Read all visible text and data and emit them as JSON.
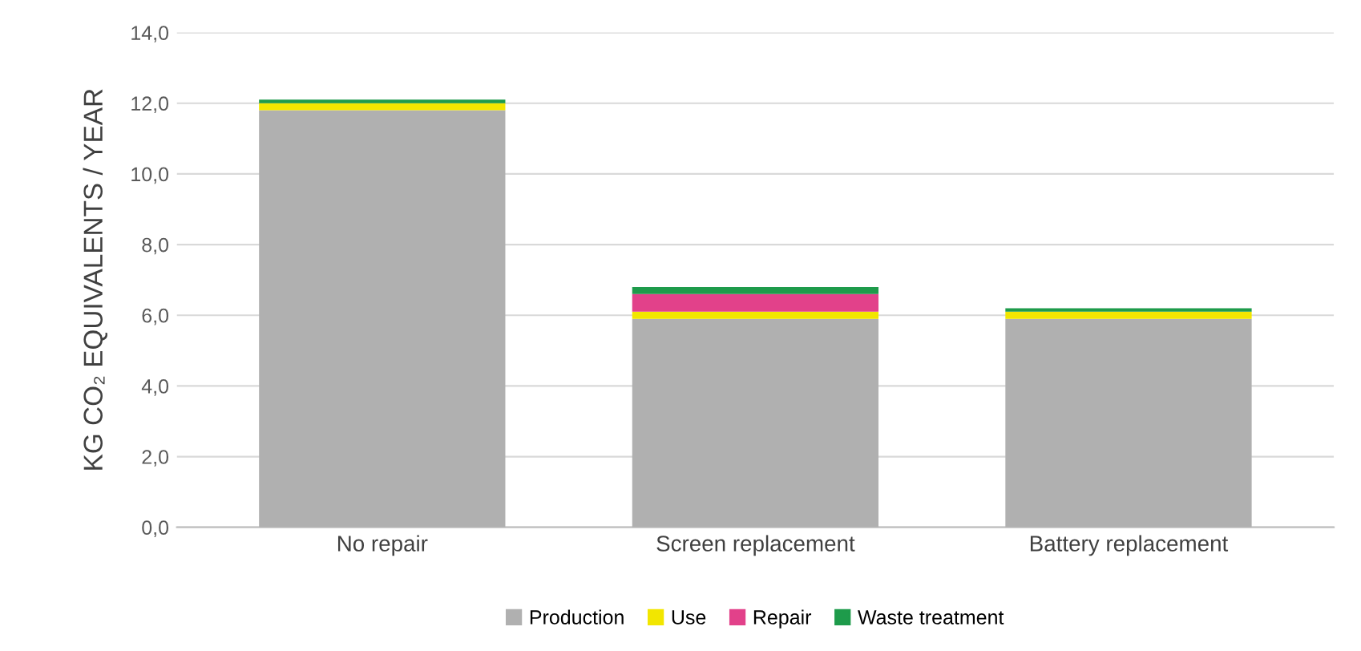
{
  "chart_data": {
    "type": "bar",
    "stacked": true,
    "ylabel": "KG CO₂ EQUIVALENTS / YEAR",
    "categories": [
      "No repair",
      "Screen replacement",
      "Battery replacement"
    ],
    "series": [
      {
        "name": "Production",
        "color": "#b0b0b0",
        "values": [
          11.8,
          5.9,
          5.9
        ]
      },
      {
        "name": "Use",
        "color": "#f2e600",
        "values": [
          0.2,
          0.2,
          0.2
        ]
      },
      {
        "name": "Repair",
        "color": "#e2418a",
        "values": [
          0,
          0.5,
          0
        ]
      },
      {
        "name": "Waste treatment",
        "color": "#1e9b4b",
        "values": [
          0.1,
          0.2,
          0.1
        ]
      }
    ],
    "ylim": [
      0,
      14
    ],
    "yticks": [
      {
        "value": 0,
        "label": "0,0"
      },
      {
        "value": 2,
        "label": "2,0"
      },
      {
        "value": 4,
        "label": "4,0"
      },
      {
        "value": 6,
        "label": "6,0"
      },
      {
        "value": 8,
        "label": "8,0"
      },
      {
        "value": 10,
        "label": "10,0"
      },
      {
        "value": 12,
        "label": "12,0"
      },
      {
        "value": 14,
        "label": "14,0"
      }
    ],
    "grid": "y",
    "legend": "bottom"
  }
}
